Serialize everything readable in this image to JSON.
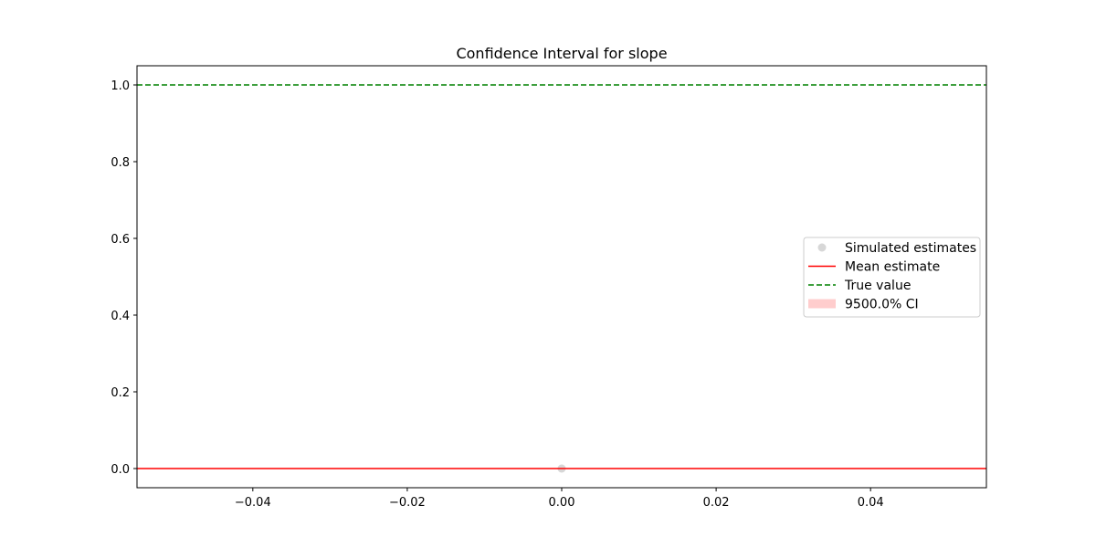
{
  "chart_data": {
    "type": "scatter",
    "title": "Confidence Interval for slope",
    "xlabel": "",
    "ylabel": "",
    "xlim": [
      -0.055,
      0.055
    ],
    "ylim": [
      -0.05,
      1.05
    ],
    "xticks": [
      -0.04,
      -0.02,
      0.0,
      0.02,
      0.04
    ],
    "xtick_labels": [
      "−0.04",
      "−0.02",
      "0.00",
      "0.02",
      "0.04"
    ],
    "yticks": [
      0.0,
      0.2,
      0.4,
      0.6,
      0.8,
      1.0
    ],
    "ytick_labels": [
      "0.0",
      "0.2",
      "0.4",
      "0.6",
      "0.8",
      "1.0"
    ],
    "grid": false,
    "legend_position": "center-right",
    "series": [
      {
        "name": "Simulated estimates",
        "kind": "scatter",
        "x": [
          0.0
        ],
        "y": [
          0.0
        ],
        "color": "#b0b0b0"
      },
      {
        "name": "Mean estimate",
        "kind": "hline",
        "y": 0.0,
        "color": "#ff0000"
      },
      {
        "name": "True value",
        "kind": "hline",
        "y": 1.0,
        "color": "#008000",
        "dashed": true
      },
      {
        "name": "9500.0% CI",
        "kind": "band",
        "y": [
          0.0,
          0.0
        ],
        "color": "#ff9c9c"
      }
    ]
  }
}
